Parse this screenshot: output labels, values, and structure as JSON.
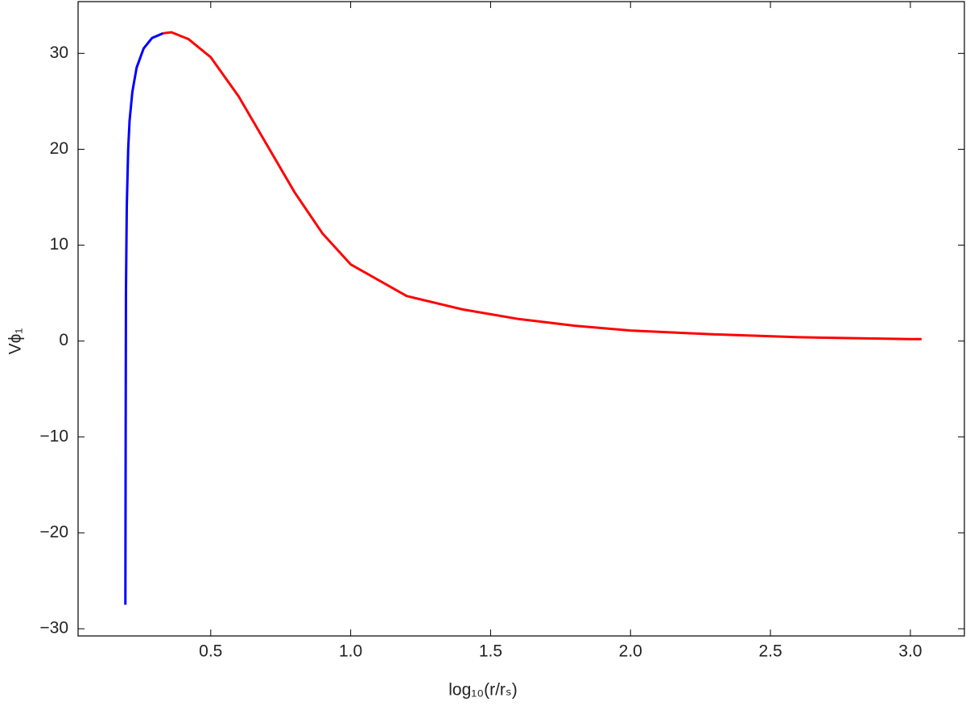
{
  "chart_data": {
    "type": "line",
    "x_label": "log₁₀(r/rₛ)",
    "y_label": "Vϕ₁",
    "xlim": [
      0.026,
      3.193
    ],
    "ylim": [
      -30.75,
      35.4
    ],
    "xticks": [
      0.5,
      {
        "value": 1,
        "label": "1.0"
      },
      1.5,
      {
        "value": 2,
        "label": "2.0"
      },
      2.5,
      {
        "value": 3,
        "label": "3.0"
      }
    ],
    "yticks": [
      {
        "value": -30,
        "label": "−30"
      },
      {
        "value": -20,
        "label": "−20"
      },
      {
        "value": -10,
        "label": "−10"
      },
      0,
      10,
      20,
      30
    ],
    "series": [
      {
        "color": "#0000ff",
        "x": [
          0.195,
          0.196,
          0.197,
          0.2,
          0.205,
          0.21,
          0.22,
          0.235,
          0.26,
          0.29,
          0.33
        ],
        "values": [
          -27.5,
          -10,
          5,
          14,
          20,
          23,
          26,
          28.5,
          30.5,
          31.6,
          32.1
        ]
      },
      {
        "color": "#ff0000",
        "x": [
          0.33,
          0.36,
          0.42,
          0.5,
          0.6,
          0.7,
          0.8,
          0.9,
          1.0,
          1.2,
          1.4,
          1.6,
          1.8,
          2.0,
          2.3,
          2.6,
          3.0,
          3.04
        ],
        "values": [
          32.1,
          32.2,
          31.5,
          29.6,
          25.5,
          20.5,
          15.5,
          11.2,
          8.0,
          4.7,
          3.3,
          2.3,
          1.6,
          1.1,
          0.7,
          0.4,
          0.2,
          0.2
        ]
      }
    ]
  }
}
